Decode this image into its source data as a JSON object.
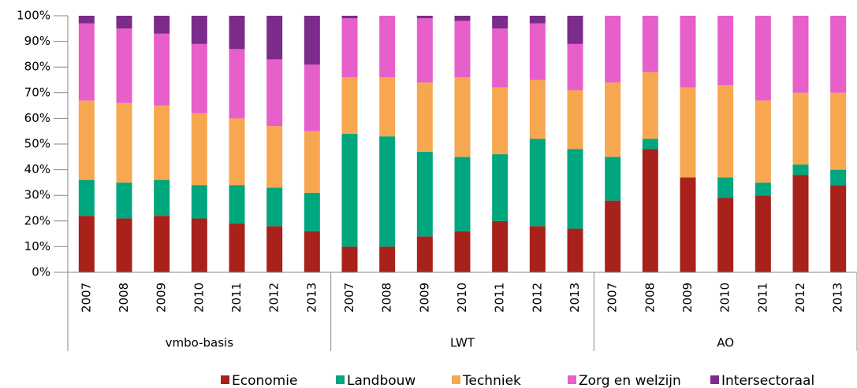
{
  "chart_data": {
    "type": "bar",
    "stacked": true,
    "categories": [
      "2007",
      "2008",
      "2009",
      "2010",
      "2011",
      "2012",
      "2013",
      "2007",
      "2008",
      "2009",
      "2010",
      "2011",
      "2012",
      "2013",
      "2007",
      "2008",
      "2009",
      "2010",
      "2011",
      "2012",
      "2013"
    ],
    "groups": [
      "vmbo-basis",
      "LWT",
      "AO"
    ],
    "series": [
      {
        "name": "Economie",
        "color": "#a8211b",
        "values": [
          22,
          21,
          22,
          21,
          19,
          18,
          16,
          10,
          10,
          14,
          16,
          20,
          18,
          17,
          28,
          48,
          37,
          29,
          30,
          38,
          34
        ]
      },
      {
        "name": "Landbouw",
        "color": "#00a67e",
        "values": [
          14,
          14,
          14,
          13,
          15,
          15,
          15,
          44,
          43,
          33,
          29,
          26,
          34,
          31,
          17,
          4,
          0,
          8,
          5,
          4,
          6
        ]
      },
      {
        "name": "Techniek",
        "color": "#f7a74f",
        "values": [
          31,
          31,
          29,
          28,
          26,
          24,
          24,
          22,
          23,
          27,
          31,
          26,
          23,
          23,
          29,
          26,
          35,
          36,
          32,
          28,
          30
        ]
      },
      {
        "name": "Zorg en welzijn",
        "color": "#e75fc9",
        "values": [
          30,
          29,
          28,
          27,
          27,
          26,
          26,
          23,
          24,
          25,
          22,
          23,
          22,
          18,
          26,
          22,
          28,
          27,
          33,
          30,
          30
        ]
      },
      {
        "name": "Intersectoraal",
        "color": "#7b2b8a",
        "values": [
          3,
          5,
          7,
          11,
          13,
          17,
          19,
          1,
          0,
          1,
          2,
          5,
          3,
          11,
          0,
          0,
          0,
          0,
          0,
          0,
          0
        ]
      }
    ],
    "ylim": [
      0,
      100
    ],
    "yticks": [
      {
        "value": 0,
        "label": "0%"
      },
      {
        "value": 10,
        "label": "10%"
      },
      {
        "value": 20,
        "label": "20%"
      },
      {
        "value": 30,
        "label": "30%"
      },
      {
        "value": 40,
        "label": "40%"
      },
      {
        "value": 50,
        "label": "50%"
      },
      {
        "value": 60,
        "label": "60%"
      },
      {
        "value": 70,
        "label": "70%"
      },
      {
        "value": 80,
        "label": "80%"
      },
      {
        "value": 90,
        "label": "90%"
      },
      {
        "value": 100,
        "label": "100%"
      }
    ],
    "legend": "bottom"
  }
}
